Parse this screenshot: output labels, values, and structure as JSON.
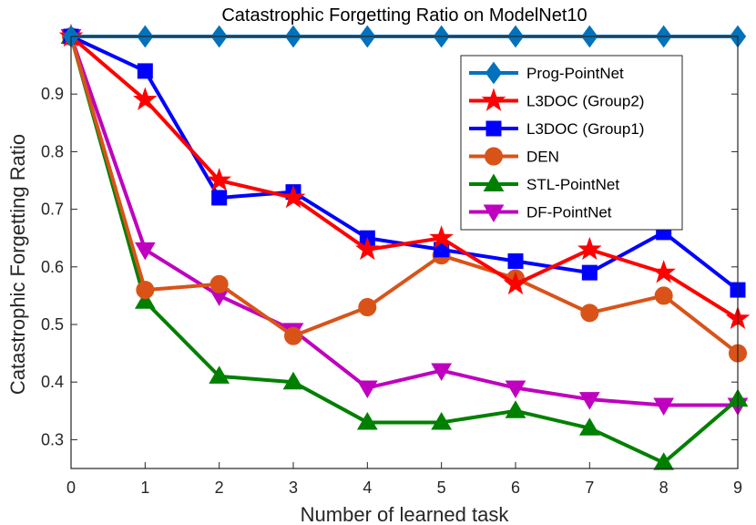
{
  "chart_data": {
    "type": "line",
    "title": "Catastrophic Forgetting Ratio on ModelNet10",
    "xlabel": "Number of learned task",
    "ylabel": "Catastrophic Forgetting Ratio",
    "xlim": [
      0,
      9
    ],
    "ylim": [
      0.25,
      1.0
    ],
    "x": [
      0,
      1,
      2,
      3,
      4,
      5,
      6,
      7,
      8,
      9
    ],
    "xticks": [
      "0",
      "1",
      "2",
      "3",
      "4",
      "5",
      "6",
      "7",
      "8",
      "9"
    ],
    "yticks": [
      0.3,
      0.4,
      0.5,
      0.6,
      0.7,
      0.8,
      0.9
    ],
    "ytick_labels": [
      "0.3",
      "0.4",
      "0.5",
      "0.6",
      "0.7",
      "0.8",
      "0.9"
    ],
    "legend_position": "top-right",
    "series": [
      {
        "name": "Prog-PointNet",
        "color": "#0072BD",
        "marker": "diamond",
        "values": [
          1.0,
          1.0,
          1.0,
          1.0,
          1.0,
          1.0,
          1.0,
          1.0,
          1.0,
          1.0
        ]
      },
      {
        "name": "L3DOC (Group2)",
        "color": "#FF0000",
        "marker": "star",
        "values": [
          1.0,
          0.89,
          0.75,
          0.72,
          0.63,
          0.65,
          0.57,
          0.63,
          0.59,
          0.51
        ]
      },
      {
        "name": "L3DOC (Group1)",
        "color": "#0000FF",
        "marker": "square",
        "values": [
          1.0,
          0.94,
          0.72,
          0.73,
          0.65,
          0.63,
          0.61,
          0.59,
          0.66,
          0.56
        ]
      },
      {
        "name": "DEN",
        "color": "#D95319",
        "marker": "circle",
        "values": [
          1.0,
          0.56,
          0.57,
          0.48,
          0.53,
          0.62,
          0.58,
          0.52,
          0.55,
          0.45
        ]
      },
      {
        "name": "STL-PointNet",
        "color": "#008000",
        "marker": "triangle-up",
        "values": [
          1.0,
          0.54,
          0.41,
          0.4,
          0.33,
          0.33,
          0.35,
          0.32,
          0.26,
          0.37
        ]
      },
      {
        "name": "DF-PointNet",
        "color": "#BF00BF",
        "marker": "triangle-down",
        "values": [
          1.0,
          0.63,
          0.55,
          0.49,
          0.39,
          0.42,
          0.39,
          0.37,
          0.36,
          0.36
        ]
      }
    ]
  }
}
